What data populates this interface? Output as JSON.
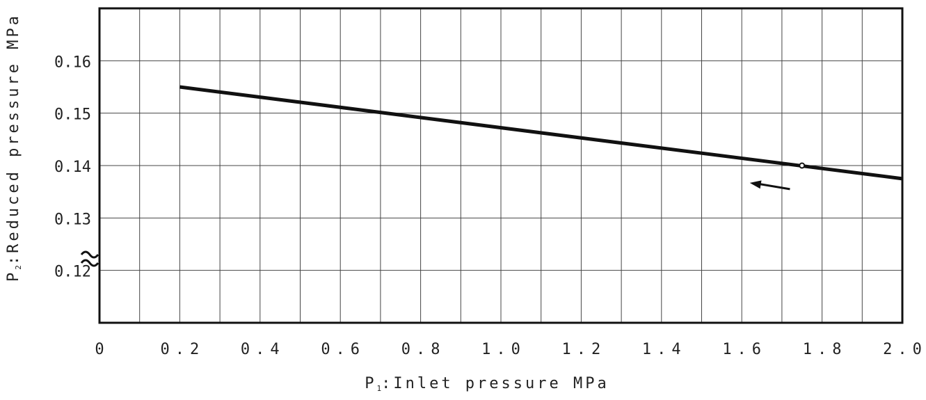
{
  "chart_data": {
    "type": "line",
    "xlabel": {
      "symbol": "P",
      "subscript": "1",
      "text": ":Inlet pressure MPa"
    },
    "ylabel": {
      "symbol": "P",
      "subscript": "2",
      "text": ":Reduced pressure MPa"
    },
    "xlim": [
      0,
      2.0
    ],
    "ylim": [
      0.11,
      0.17
    ],
    "x_axis_break": true,
    "grid": true,
    "x_ticks": [
      "0",
      "0.2",
      "0.4",
      "0.6",
      "0.8",
      "1.0",
      "1.2",
      "1.4",
      "1.6",
      "1.8",
      "2.0"
    ],
    "y_ticks": [
      "0.12",
      "0.13",
      "0.14",
      "0.15",
      "0.16"
    ],
    "series": [
      {
        "x": [
          0.2,
          2.0
        ],
        "y": [
          0.155,
          0.1375
        ]
      }
    ],
    "marker_point": {
      "x": 1.75,
      "y": 0.14
    },
    "arrow": {
      "from": {
        "x": 1.72,
        "y": 0.1355
      },
      "to": {
        "x": 1.62,
        "y": 0.1367
      }
    }
  }
}
